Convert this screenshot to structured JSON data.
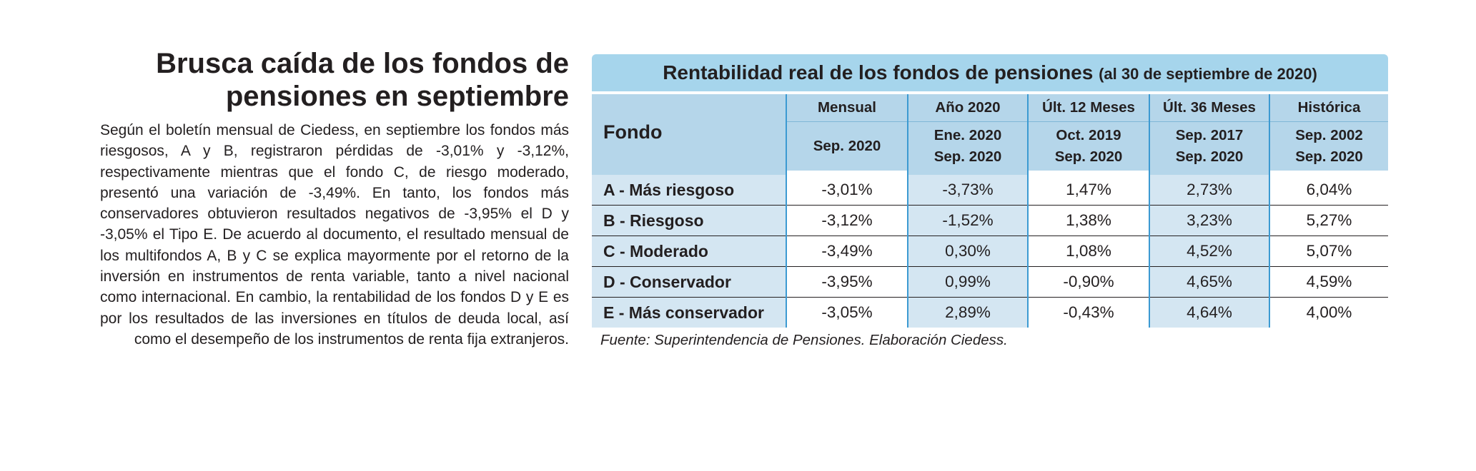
{
  "article": {
    "headline_line1": "Brusca caída de los fondos de",
    "headline_line2": "pensiones en septiembre",
    "body": "Según el boletín mensual de Ciedess, en septiembre los fondos más riesgosos, A y B, registraron pérdidas de -3,01% y -3,12%, respectivamente mientras que el fondo C, de riesgo moderado, presentó una variación de -3,49%. En tanto, los fondos más conservadores obtuvieron resultados negativos de -3,95% el D y -3,05% el Tipo E. De acuerdo al documento, el resultado mensual de los multifondos A, B y C se explica mayormente por el retorno de la inversión en instrumentos de renta variable, tanto a nivel nacional como internacional. En cambio, la rentabilidad de los fondos D y E es por los resultados de las inversiones en títulos de deuda local, así como el desempeño de los instrumentos de renta fija extranjeros."
  },
  "table": {
    "title": "Rentabilidad real de los fondos de pensiones",
    "subtitle": "(al 30 de septiembre de 2020)",
    "fondo_header": "Fondo",
    "columns": [
      {
        "period": "Mensual",
        "range_line1": "Sep. 2020",
        "range_line2": ""
      },
      {
        "period": "Año 2020",
        "range_line1": "Ene. 2020",
        "range_line2": "Sep. 2020"
      },
      {
        "period": "Últ. 12 Meses",
        "range_line1": "Oct. 2019",
        "range_line2": "Sep. 2020"
      },
      {
        "period": "Últ. 36 Meses",
        "range_line1": "Sep. 2017",
        "range_line2": "Sep. 2020"
      },
      {
        "period": "Histórica",
        "range_line1": "Sep. 2002",
        "range_line2": "Sep. 2020"
      }
    ],
    "rows": [
      {
        "fund": "A - Más riesgoso",
        "values": [
          "-3,01%",
          "-3,73%",
          "1,47%",
          "2,73%",
          "6,04%"
        ]
      },
      {
        "fund": "B - Riesgoso",
        "values": [
          "-3,12%",
          "-1,52%",
          "1,38%",
          "3,23%",
          "5,27%"
        ]
      },
      {
        "fund": "C - Moderado",
        "values": [
          "-3,49%",
          "0,30%",
          "1,08%",
          "4,52%",
          "5,07%"
        ]
      },
      {
        "fund": "D - Conservador",
        "values": [
          "-3,95%",
          "0,99%",
          "-0,90%",
          "4,65%",
          "4,59%"
        ]
      },
      {
        "fund": "E - Más conservador",
        "values": [
          "-3,05%",
          "2,89%",
          "-0,43%",
          "4,64%",
          "4,00%"
        ]
      }
    ],
    "source": "Fuente: Superintendencia de Pensiones. Elaboración Ciedess."
  },
  "colors": {
    "title_band": "#a6d5ec",
    "header_fill": "#b5d6ea",
    "alt_column_fill": "#d4e6f2",
    "divider_blue": "#3c9ad2",
    "text": "#231f20"
  }
}
